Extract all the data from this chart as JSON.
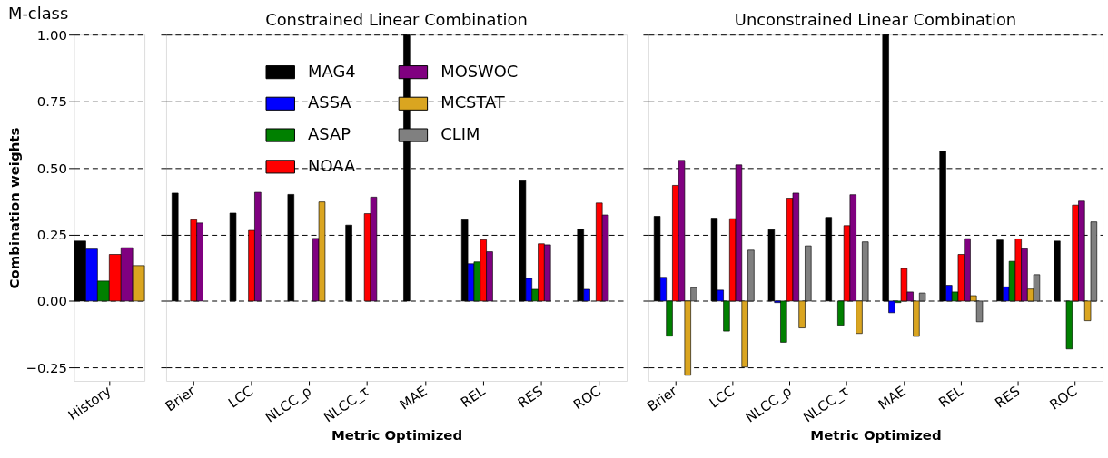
{
  "chart_data": [
    {
      "type": "bar",
      "title": "M-class",
      "ylabel": "Combination weights",
      "categories": [
        "History"
      ],
      "ylim": [
        -0.3,
        1.0
      ],
      "yticks": [
        {
          "value": -0.25,
          "label": "−0.25"
        },
        {
          "value": 0,
          "label": "0.00"
        },
        0.25,
        {
          "value": 0.5,
          "label": "0.50"
        },
        0.75,
        {
          "value": 1,
          "label": "1.00"
        }
      ],
      "grid": "y",
      "line_style": "dashed",
      "legend": false,
      "series": [
        {
          "color": "#000000",
          "values": [
            0.225
          ]
        },
        {
          "color": "#0000ff",
          "values": [
            0.195
          ]
        },
        {
          "color": "#008000",
          "values": [
            0.075
          ]
        },
        {
          "color": "#ff0000",
          "values": [
            0.175
          ]
        },
        {
          "color": "#800080",
          "values": [
            0.2
          ]
        },
        {
          "color": "#daa520",
          "values": [
            0.133
          ]
        },
        {
          "color": "#808080",
          "values": [
            null
          ]
        }
      ]
    },
    {
      "type": "bar",
      "title": "Constrained Linear Combination",
      "xlabel": "Metric Optimized",
      "categories": [
        "Brier",
        "LCC",
        "NLCC_ρ",
        "NLCC_τ",
        "MAE",
        "REL",
        "RES",
        "ROC"
      ],
      "ylim": [
        -0.3,
        1.0
      ],
      "yticks": [
        -0.25,
        0,
        0.25,
        0.5,
        0.75,
        1
      ],
      "grid": "y",
      "line_style": "dashed",
      "legend": "top",
      "tick_labels": "x",
      "series": [
        {
          "name": "MAG4",
          "color": "#000000",
          "values": [
            0.405,
            0.33,
            0.4,
            0.285,
            1.0,
            0.305,
            0.452,
            0.27
          ]
        },
        {
          "name": "ASSA",
          "color": "#0000ff",
          "values": [
            0,
            0,
            0,
            0,
            0,
            0.14,
            0.085,
            0.044
          ]
        },
        {
          "name": "ASAP",
          "color": "#008000",
          "values": [
            0,
            0,
            0,
            0,
            0,
            0.147,
            0.044,
            0
          ]
        },
        {
          "name": "NOAA",
          "color": "#ff0000",
          "values": [
            0.305,
            0.265,
            0,
            0.328,
            0,
            0.23,
            0.215,
            0.368
          ]
        },
        {
          "name": "MOSWOC",
          "color": "#800080",
          "values": [
            0.293,
            0.408,
            0.235,
            0.39,
            0,
            0.185,
            0.211,
            0.323
          ]
        },
        {
          "name": "MCSTAT",
          "color": "#daa520",
          "values": [
            0,
            0,
            0.372,
            0,
            0,
            0,
            0,
            0
          ]
        },
        {
          "name": "CLIM",
          "color": "#808080",
          "values": [
            0,
            0,
            0,
            0,
            0,
            0,
            0,
            0
          ]
        }
      ]
    },
    {
      "type": "bar",
      "title": "Unconstrained Linear Combination",
      "xlabel": "Metric Optimized",
      "categories": [
        "Brier",
        "LCC",
        "NLCC_ρ",
        "NLCC_τ",
        "MAE",
        "REL",
        "RES",
        "ROC"
      ],
      "ylim": [
        -0.3,
        1.0
      ],
      "yticks": [
        -0.25,
        0,
        0.25,
        0.5,
        0.75,
        1
      ],
      "grid": "y",
      "line_style": "dashed",
      "legend": false,
      "tick_labels": "x",
      "series": [
        {
          "color": "#000000",
          "values": [
            0.318,
            0.311,
            0.268,
            0.314,
            1.0,
            0.562,
            0.229,
            0.225
          ]
        },
        {
          "color": "#0000ff",
          "values": [
            0.089,
            0.041,
            -0.006,
            0,
            -0.044,
            0.059,
            0.053,
            0
          ]
        },
        {
          "color": "#008000",
          "values": [
            -0.132,
            -0.113,
            -0.155,
            -0.091,
            -0.006,
            0.034,
            0.149,
            -0.18
          ]
        },
        {
          "color": "#ff0000",
          "values": [
            0.434,
            0.309,
            0.386,
            0.283,
            0.122,
            0.175,
            0.233,
            0.36
          ]
        },
        {
          "color": "#800080",
          "values": [
            0.528,
            0.511,
            0.405,
            0.399,
            0.034,
            0.234,
            0.196,
            0.375
          ]
        },
        {
          "color": "#daa520",
          "values": [
            -0.279,
            -0.248,
            -0.101,
            -0.122,
            -0.133,
            0.02,
            0.045,
            -0.074
          ]
        },
        {
          "color": "#808080",
          "values": [
            0.05,
            0.191,
            0.207,
            0.222,
            0.03,
            -0.078,
            0.099,
            0.297
          ]
        }
      ]
    }
  ]
}
